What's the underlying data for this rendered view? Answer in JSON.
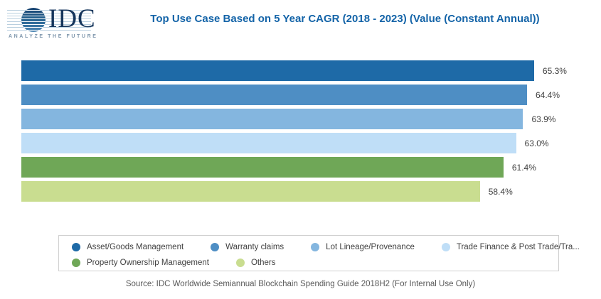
{
  "logo": {
    "name": "IDC",
    "tagline": "ANALYZE THE FUTURE"
  },
  "title": "Top Use Case Based on 5 Year CAGR (2018 - 2023) (Value (Constant Annual))",
  "chart_data": {
    "type": "bar",
    "orientation": "horizontal",
    "title": "Top Use Case Based on 5 Year CAGR (2018 - 2023) (Value (Constant Annual))",
    "categories": [
      "Asset/Goods Management",
      "Warranty claims",
      "Lot Lineage/Provenance",
      "Trade Finance & Post Trade/Tra...",
      "Property Ownership Management",
      "Others"
    ],
    "values": [
      65.3,
      64.4,
      63.9,
      63.0,
      61.4,
      58.4
    ],
    "value_labels": [
      "65.3%",
      "64.4%",
      "63.9%",
      "63.0%",
      "61.4%",
      "58.4%"
    ],
    "unit": "percent CAGR",
    "colors": [
      "#1E6AA7",
      "#4E8EC4",
      "#84B6DF",
      "#BFDEF7",
      "#6FA757",
      "#C9DD90"
    ],
    "xlim": [
      0,
      74
    ],
    "axes_visible": false,
    "grid": false,
    "data_labels_position": "right",
    "legend_position": "bottom"
  },
  "legend": {
    "items": [
      {
        "label": "Asset/Goods Management",
        "color": "#1E6AA7"
      },
      {
        "label": "Warranty claims",
        "color": "#4E8EC4"
      },
      {
        "label": "Lot Lineage/Provenance",
        "color": "#84B6DF"
      },
      {
        "label": "Trade Finance & Post Trade/Tra...",
        "color": "#BFDEF7"
      },
      {
        "label": "Property Ownership Management",
        "color": "#6FA757"
      },
      {
        "label": "Others",
        "color": "#C9DD90"
      }
    ]
  },
  "source": "Source: IDC Worldwide Semiannual Blockchain Spending Guide 2018H2 (For Internal Use Only)"
}
